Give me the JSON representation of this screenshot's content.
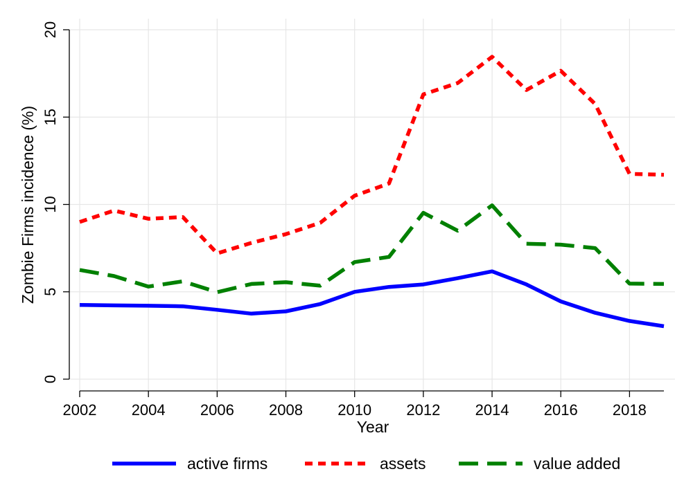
{
  "chart_data": {
    "type": "line",
    "title": "",
    "xlabel": "Year",
    "ylabel": "Zombie Firms incidence (%)",
    "xlim": [
      2002,
      2019
    ],
    "ylim": [
      0,
      20
    ],
    "x": [
      2002,
      2003,
      2004,
      2005,
      2006,
      2007,
      2008,
      2009,
      2010,
      2011,
      2012,
      2013,
      2014,
      2015,
      2016,
      2017,
      2018,
      2019
    ],
    "x_ticks": [
      "2002",
      "2004",
      "2006",
      "2008",
      "2010",
      "2012",
      "2014",
      "2016",
      "2018"
    ],
    "y_ticks": [
      "0",
      "5",
      "10",
      "15",
      "20"
    ],
    "grid": true,
    "legend_position": "bottom",
    "series": [
      {
        "name": "active firms",
        "color": "#0000ff",
        "dash": "solid",
        "values": [
          4.25,
          4.22,
          4.2,
          4.17,
          3.97,
          3.75,
          3.88,
          4.3,
          5.0,
          5.28,
          5.42,
          5.78,
          6.17,
          5.42,
          4.45,
          3.8,
          3.33,
          3.03
        ]
      },
      {
        "name": "assets",
        "color": "#ff0000",
        "dash": "short-dash",
        "values": [
          9.0,
          9.65,
          9.18,
          9.28,
          7.2,
          7.8,
          8.3,
          8.95,
          10.5,
          11.2,
          16.3,
          16.95,
          18.45,
          16.55,
          17.65,
          15.75,
          11.75,
          11.7
        ]
      },
      {
        "name": "value added",
        "color": "#008000",
        "dash": "long-dash",
        "values": [
          6.25,
          5.9,
          5.3,
          5.6,
          4.98,
          5.45,
          5.55,
          5.35,
          6.7,
          7.0,
          9.52,
          8.5,
          9.95,
          7.75,
          7.7,
          7.5,
          5.47,
          5.45
        ]
      }
    ]
  }
}
